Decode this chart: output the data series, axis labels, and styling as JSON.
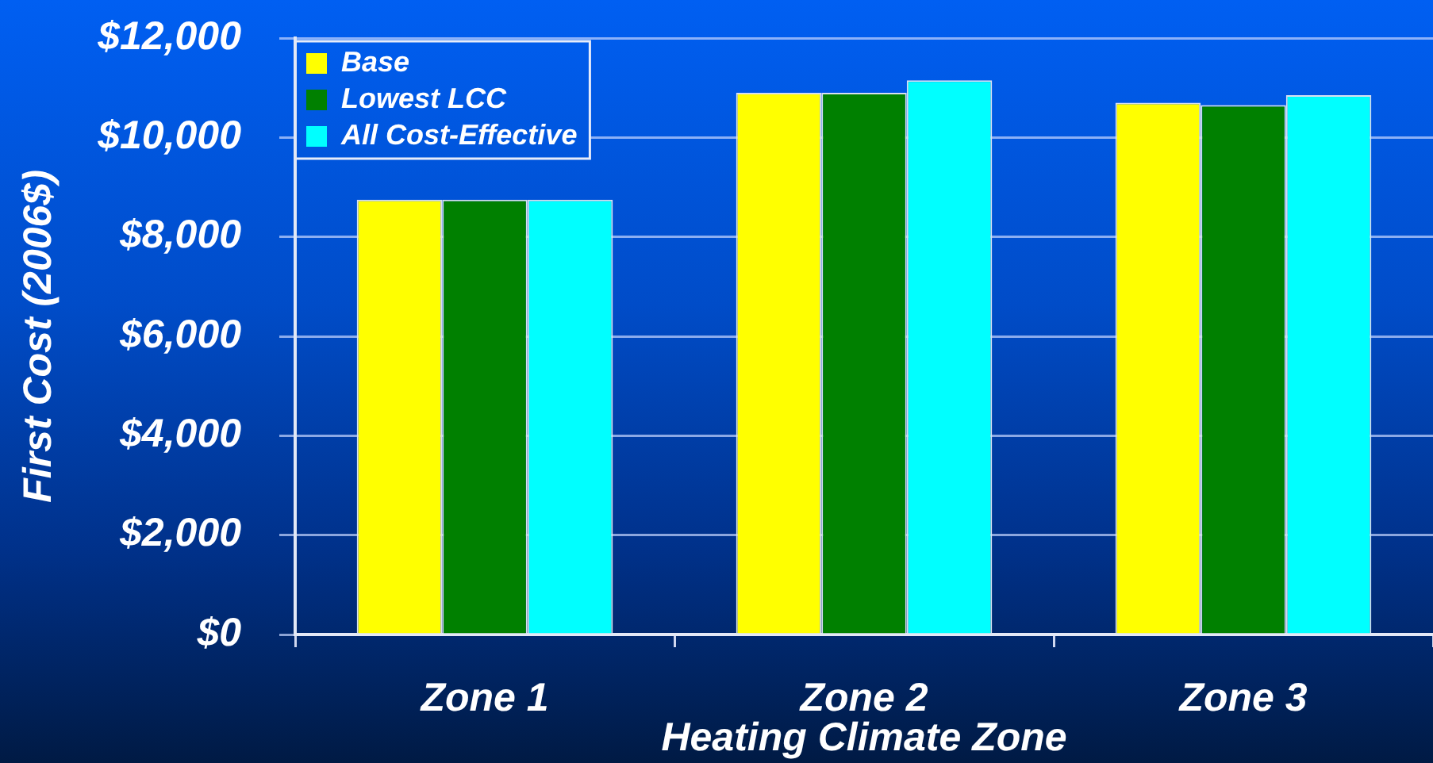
{
  "chart_data": {
    "type": "bar",
    "xlabel": "Heating Climate Zone",
    "ylabel": "First Cost (2006$)",
    "categories": [
      "Zone 1",
      "Zone 2",
      "Zone 3"
    ],
    "series": [
      {
        "name": "Base",
        "color": "#ffff00",
        "values": [
          8750,
          10900,
          10700
        ]
      },
      {
        "name": "Lowest LCC",
        "color": "#008000",
        "values": [
          8750,
          10900,
          10650
        ]
      },
      {
        "name": "All Cost-Effective",
        "color": "#00ffff",
        "values": [
          8750,
          11150,
          10850
        ]
      }
    ],
    "ylim": [
      0,
      12000
    ],
    "yticks": [
      {
        "value": 0,
        "label": "$0"
      },
      {
        "value": 2000,
        "label": "$2,000"
      },
      {
        "value": 4000,
        "label": "$4,000"
      },
      {
        "value": 6000,
        "label": "$6,000"
      },
      {
        "value": 8000,
        "label": "$8,000"
      },
      {
        "value": 10000,
        "label": "$10,000"
      },
      {
        "value": 12000,
        "label": "$12,000"
      }
    ],
    "grid": "y",
    "legend": "top left"
  }
}
